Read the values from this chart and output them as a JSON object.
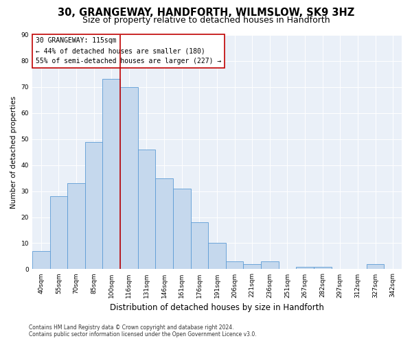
{
  "title": "30, GRANGEWAY, HANDFORTH, WILMSLOW, SK9 3HZ",
  "subtitle": "Size of property relative to detached houses in Handforth",
  "xlabel": "Distribution of detached houses by size in Handforth",
  "ylabel": "Number of detached properties",
  "categories": [
    "40sqm",
    "55sqm",
    "70sqm",
    "85sqm",
    "100sqm",
    "116sqm",
    "131sqm",
    "146sqm",
    "161sqm",
    "176sqm",
    "191sqm",
    "206sqm",
    "221sqm",
    "236sqm",
    "251sqm",
    "267sqm",
    "282sqm",
    "297sqm",
    "312sqm",
    "327sqm",
    "342sqm"
  ],
  "values": [
    7,
    28,
    33,
    49,
    73,
    70,
    46,
    35,
    31,
    18,
    10,
    3,
    2,
    3,
    0,
    1,
    1,
    0,
    0,
    2,
    0
  ],
  "bar_color": "#c5d8ed",
  "bar_edge_color": "#5b9bd5",
  "highlight_index": 5,
  "highlight_line_color": "#c00000",
  "annotation_line1": "30 GRANGEWAY: 115sqm",
  "annotation_line2": "← 44% of detached houses are smaller (180)",
  "annotation_line3": "55% of semi-detached houses are larger (227) →",
  "annotation_box_color": "#ffffff",
  "annotation_box_edge": "#c00000",
  "ylim": [
    0,
    90
  ],
  "yticks": [
    0,
    10,
    20,
    30,
    40,
    50,
    60,
    70,
    80,
    90
  ],
  "background_color": "#eaf0f8",
  "footer_line1": "Contains HM Land Registry data © Crown copyright and database right 2024.",
  "footer_line2": "Contains public sector information licensed under the Open Government Licence v3.0.",
  "title_fontsize": 10.5,
  "subtitle_fontsize": 9,
  "xlabel_fontsize": 8.5,
  "ylabel_fontsize": 7.5,
  "tick_fontsize": 6.5,
  "annotation_fontsize": 7,
  "footer_fontsize": 5.5
}
